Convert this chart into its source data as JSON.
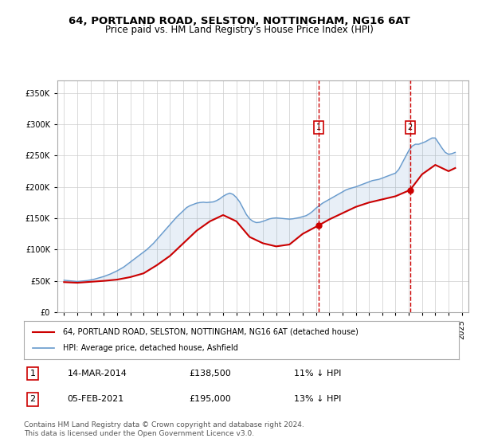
{
  "title": "64, PORTLAND ROAD, SELSTON, NOTTINGHAM, NG16 6AT",
  "subtitle": "Price paid vs. HM Land Registry's House Price Index (HPI)",
  "footer": "Contains HM Land Registry data © Crown copyright and database right 2024.\nThis data is licensed under the Open Government Licence v3.0.",
  "legend_label_red": "64, PORTLAND ROAD, SELSTON, NOTTINGHAM, NG16 6AT (detached house)",
  "legend_label_blue": "HPI: Average price, detached house, Ashfield",
  "annotation1": {
    "num": "1",
    "date": "14-MAR-2014",
    "price": "£138,500",
    "hpi": "11% ↓ HPI"
  },
  "annotation2": {
    "num": "2",
    "date": "05-FEB-2021",
    "price": "£195,000",
    "hpi": "13% ↓ HPI"
  },
  "vline1_x": 2014.2,
  "vline2_x": 2021.1,
  "hpi_color": "#6699cc",
  "price_color": "#cc0000",
  "vline_color": "#cc0000",
  "background_color": "#f0f4ff",
  "plot_bg_color": "#ffffff",
  "ylim": [
    0,
    370000
  ],
  "xlim": [
    1994.5,
    2025.5
  ],
  "yticks": [
    0,
    50000,
    100000,
    150000,
    200000,
    250000,
    300000,
    350000
  ],
  "xticks": [
    1995,
    1996,
    1997,
    1998,
    1999,
    2000,
    2001,
    2002,
    2003,
    2004,
    2005,
    2006,
    2007,
    2008,
    2009,
    2010,
    2011,
    2012,
    2013,
    2014,
    2015,
    2016,
    2017,
    2018,
    2019,
    2020,
    2021,
    2022,
    2023,
    2024,
    2025
  ],
  "hpi_x": [
    1995.0,
    1995.25,
    1995.5,
    1995.75,
    1996.0,
    1996.25,
    1996.5,
    1996.75,
    1997.0,
    1997.25,
    1997.5,
    1997.75,
    1998.0,
    1998.25,
    1998.5,
    1998.75,
    1999.0,
    1999.25,
    1999.5,
    1999.75,
    2000.0,
    2000.25,
    2000.5,
    2000.75,
    2001.0,
    2001.25,
    2001.5,
    2001.75,
    2002.0,
    2002.25,
    2002.5,
    2002.75,
    2003.0,
    2003.25,
    2003.5,
    2003.75,
    2004.0,
    2004.25,
    2004.5,
    2004.75,
    2005.0,
    2005.25,
    2005.5,
    2005.75,
    2006.0,
    2006.25,
    2006.5,
    2006.75,
    2007.0,
    2007.25,
    2007.5,
    2007.75,
    2008.0,
    2008.25,
    2008.5,
    2008.75,
    2009.0,
    2009.25,
    2009.5,
    2009.75,
    2010.0,
    2010.25,
    2010.5,
    2010.75,
    2011.0,
    2011.25,
    2011.5,
    2011.75,
    2012.0,
    2012.25,
    2012.5,
    2012.75,
    2013.0,
    2013.25,
    2013.5,
    2013.75,
    2014.0,
    2014.25,
    2014.5,
    2014.75,
    2015.0,
    2015.25,
    2015.5,
    2015.75,
    2016.0,
    2016.25,
    2016.5,
    2016.75,
    2017.0,
    2017.25,
    2017.5,
    2017.75,
    2018.0,
    2018.25,
    2018.5,
    2018.75,
    2019.0,
    2019.25,
    2019.5,
    2019.75,
    2020.0,
    2020.25,
    2020.5,
    2020.75,
    2021.0,
    2021.25,
    2021.5,
    2021.75,
    2022.0,
    2022.25,
    2022.5,
    2022.75,
    2023.0,
    2023.25,
    2023.5,
    2023.75,
    2024.0,
    2024.25,
    2024.5
  ],
  "hpi_y": [
    51000,
    50500,
    50000,
    49500,
    49000,
    49500,
    50000,
    50500,
    51500,
    52500,
    54000,
    55500,
    57000,
    59000,
    61000,
    63500,
    66000,
    69000,
    72000,
    76000,
    80000,
    84000,
    88000,
    92000,
    96000,
    100000,
    105000,
    110000,
    116000,
    122000,
    128000,
    134000,
    140000,
    146000,
    152000,
    157000,
    162000,
    167000,
    170000,
    172000,
    174000,
    175000,
    175500,
    175000,
    175500,
    176000,
    178000,
    181000,
    185000,
    188000,
    190000,
    188000,
    183000,
    176000,
    166000,
    156000,
    149000,
    145000,
    143000,
    143500,
    145000,
    147000,
    149000,
    150000,
    150500,
    150000,
    149500,
    149000,
    148500,
    149000,
    150000,
    151000,
    152500,
    154000,
    157000,
    161000,
    166000,
    170000,
    174000,
    177000,
    180000,
    183000,
    186000,
    189000,
    192000,
    195000,
    197000,
    198500,
    200000,
    202000,
    204000,
    206000,
    208000,
    210000,
    211000,
    212000,
    214000,
    216000,
    218000,
    220000,
    222000,
    228000,
    238000,
    248000,
    258000,
    265000,
    268000,
    268000,
    270000,
    272000,
    275000,
    278000,
    278000,
    270000,
    262000,
    255000,
    252000,
    253000,
    255000
  ],
  "price_x": [
    1995.0,
    1996.0,
    1997.0,
    1998.0,
    1999.0,
    2000.0,
    2001.0,
    2002.0,
    2003.0,
    2004.0,
    2005.0,
    2006.0,
    2007.0,
    2008.0,
    2009.0,
    2010.0,
    2011.0,
    2012.0,
    2013.0,
    2014.2,
    2015.0,
    2016.0,
    2017.0,
    2018.0,
    2019.0,
    2020.0,
    2021.1,
    2022.0,
    2023.0,
    2024.0,
    2024.5
  ],
  "price_y": [
    48000,
    47000,
    48500,
    50000,
    52000,
    56000,
    62000,
    75000,
    90000,
    110000,
    130000,
    145000,
    155000,
    145000,
    120000,
    110000,
    105000,
    108000,
    125000,
    138500,
    148000,
    158000,
    168000,
    175000,
    180000,
    185000,
    195000,
    220000,
    235000,
    225000,
    230000
  ]
}
